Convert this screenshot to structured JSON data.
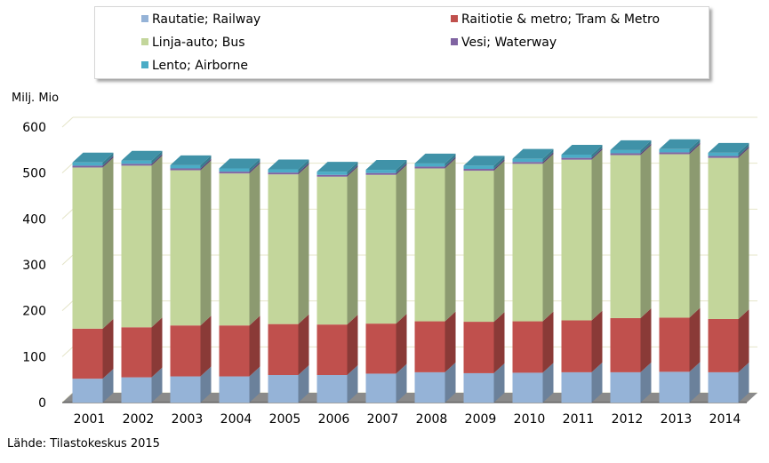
{
  "chart_data": {
    "type": "bar",
    "stacked": true,
    "three_d": true,
    "categories": [
      "2001",
      "2002",
      "2003",
      "2004",
      "2005",
      "2006",
      "2007",
      "2008",
      "2009",
      "2010",
      "2011",
      "2012",
      "2013",
      "2014"
    ],
    "series": [
      {
        "name": "Rautatie; Railway",
        "color": "#95b3d7",
        "values": [
          52,
          55,
          57,
          57,
          60,
          60,
          63,
          66,
          64,
          65,
          66,
          66,
          67,
          66
        ]
      },
      {
        "name": "Raitiotie & metro; Tram & Metro",
        "color": "#c0504d",
        "values": [
          109,
          109,
          111,
          111,
          111,
          110,
          109,
          111,
          112,
          112,
          113,
          118,
          118,
          116
        ]
      },
      {
        "name": "Linja-auto; Bus",
        "color": "#c3d69b",
        "values": [
          351,
          352,
          338,
          331,
          326,
          322,
          324,
          333,
          329,
          343,
          350,
          355,
          356,
          351
        ]
      },
      {
        "name": "Vesi; Waterway",
        "color": "#8064a2",
        "values": [
          4,
          4,
          4,
          4,
          4,
          4,
          4,
          4,
          4,
          4,
          4,
          4,
          4,
          4
        ]
      },
      {
        "name": "Lento; Airborne",
        "color": "#4bacc6",
        "values": [
          7,
          7,
          7,
          7,
          7,
          7,
          7,
          7,
          7,
          7,
          7,
          7,
          7,
          7
        ]
      }
    ],
    "ylabel": "Milj. Mio",
    "ylim": [
      0,
      600
    ],
    "yticks": [
      "0",
      "100",
      "200",
      "300",
      "400",
      "500",
      "600"
    ],
    "grid": true,
    "legend_position": "top",
    "source": "Lähde: Tilastokeskus 2015"
  }
}
